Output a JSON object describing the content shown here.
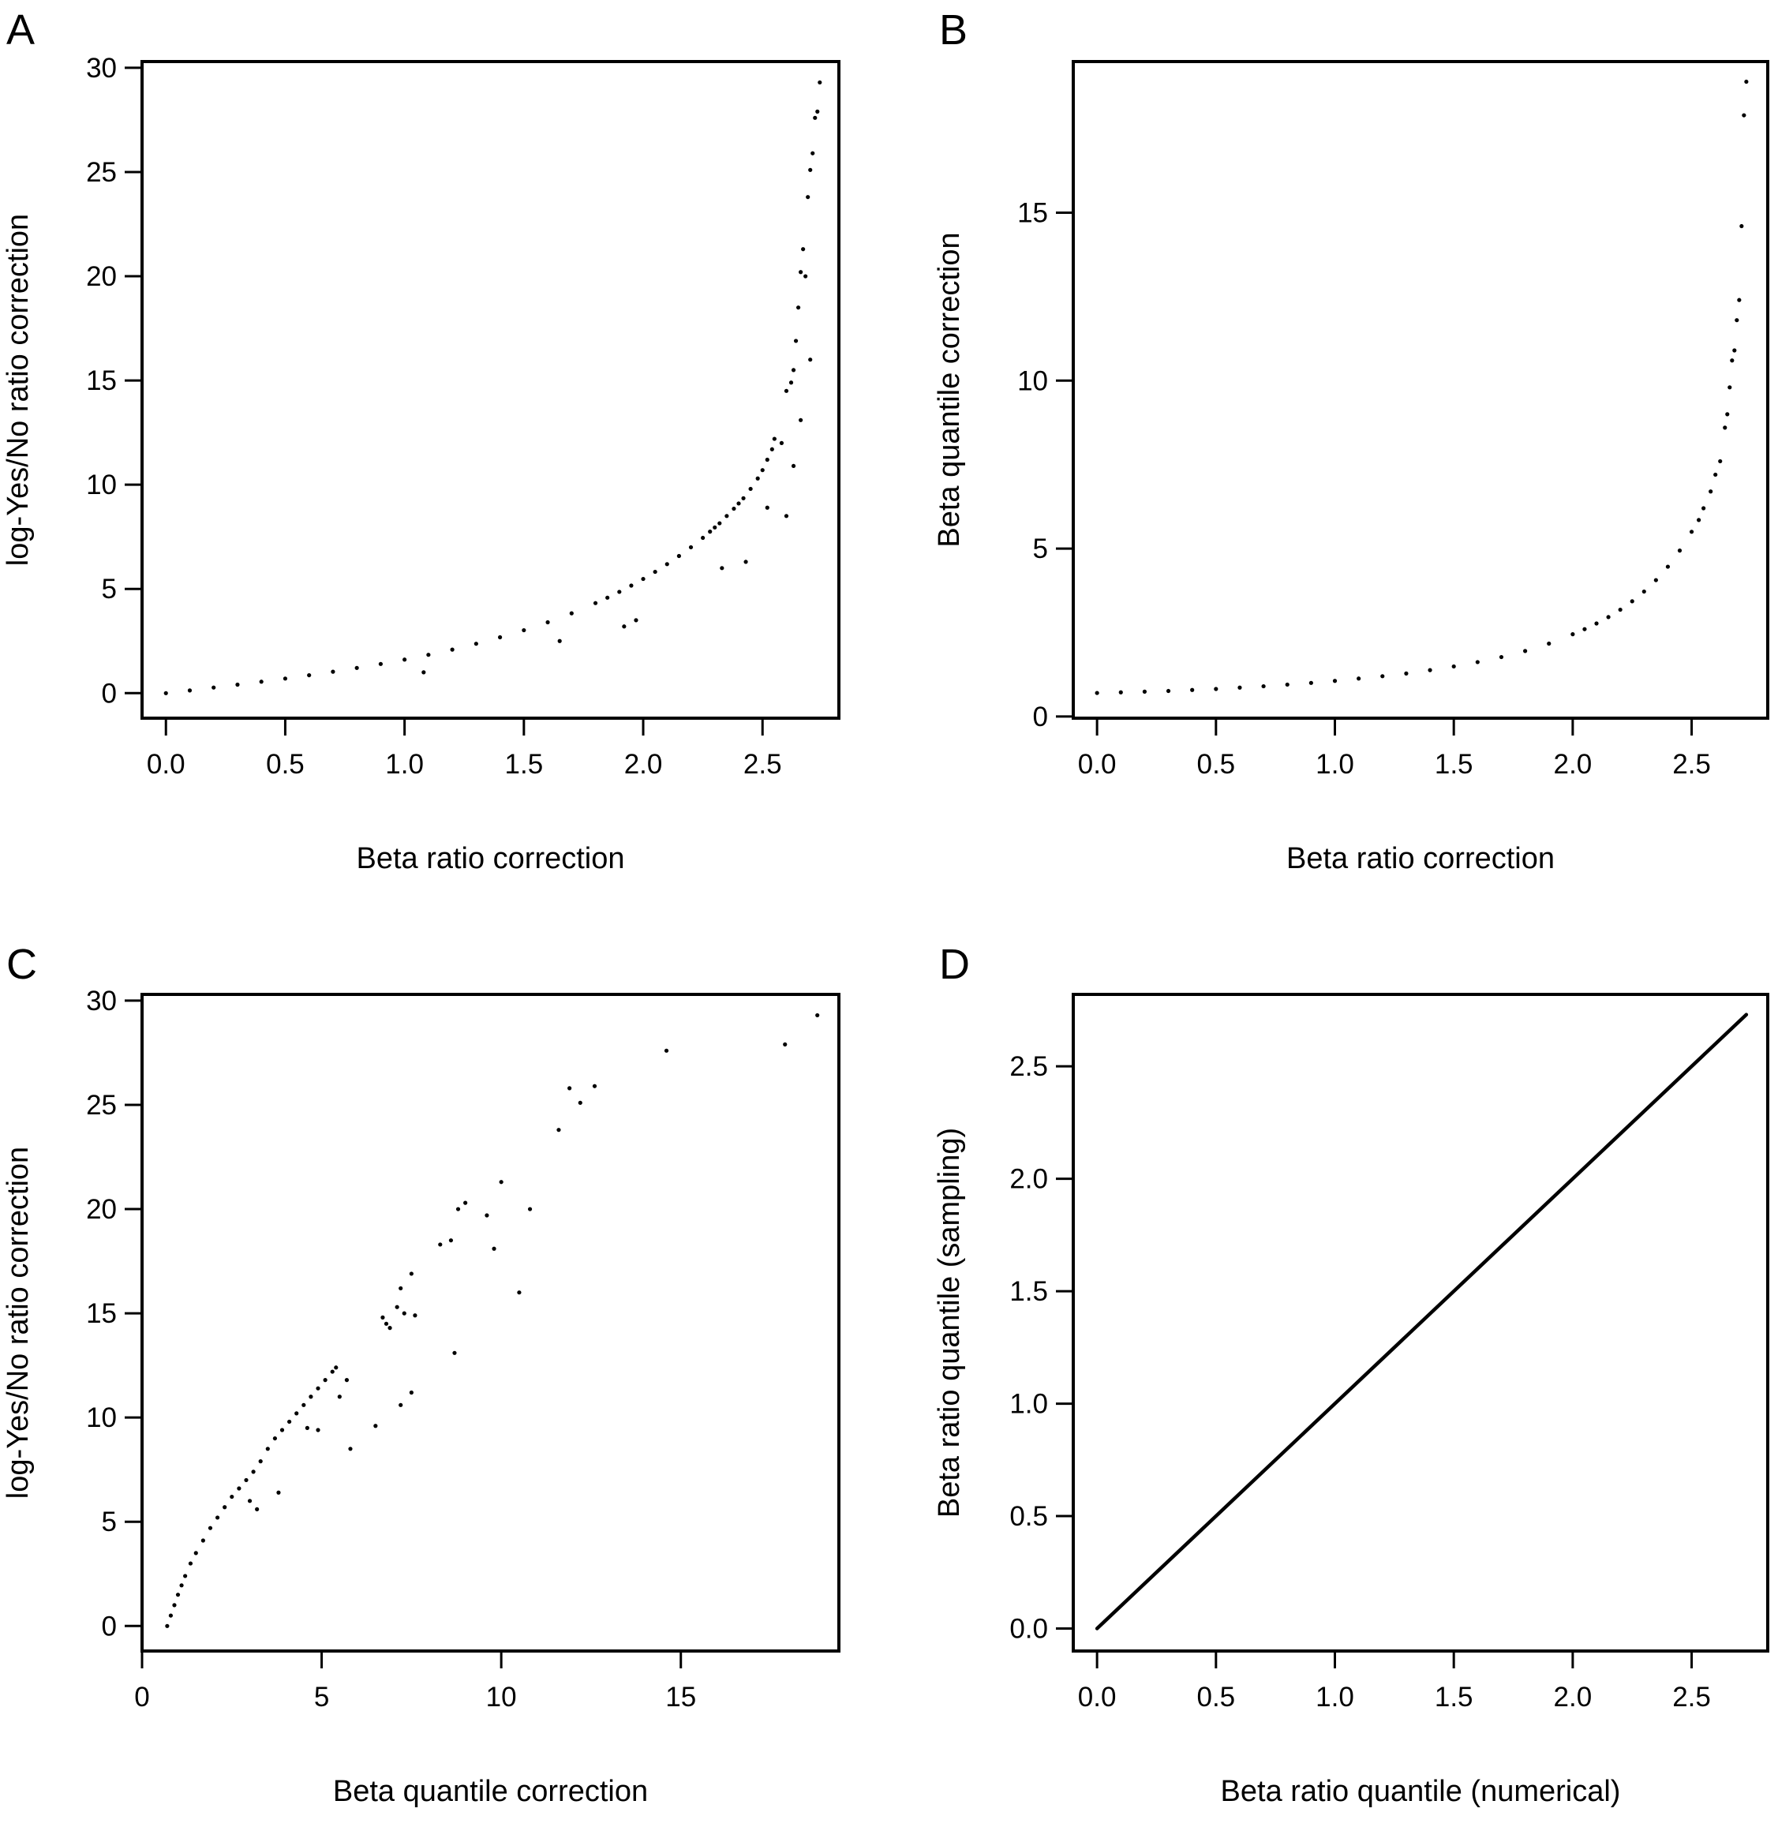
{
  "figure": {
    "panels": [
      "A",
      "B",
      "C",
      "D"
    ]
  },
  "chart_data": [
    {
      "panel": "A",
      "type": "scatter",
      "title": "",
      "xlabel": "Beta ratio correction",
      "ylabel": "log-Yes/No ratio correction",
      "xlim": [
        -0.1,
        2.82
      ],
      "ylim": [
        -1.2,
        30.3
      ],
      "xticks": [
        0.0,
        0.5,
        1.0,
        1.5,
        2.0,
        2.5
      ],
      "xtick_labels": [
        "0.0",
        "0.5",
        "1.0",
        "1.5",
        "2.0",
        "2.5"
      ],
      "yticks": [
        0,
        5,
        10,
        15,
        20,
        25,
        30
      ],
      "ytick_labels": [
        "0",
        "5",
        "10",
        "15",
        "20",
        "25",
        "30"
      ],
      "grid": false,
      "x": [
        0.0,
        0.1,
        0.2,
        0.3,
        0.4,
        0.5,
        0.6,
        0.7,
        0.8,
        0.9,
        1.0,
        1.1,
        1.2,
        1.3,
        1.4,
        1.5,
        1.6,
        1.7,
        1.8,
        1.85,
        1.9,
        1.95,
        2.0,
        2.05,
        2.1,
        2.15,
        2.2,
        2.25,
        2.28,
        2.3,
        2.32,
        2.35,
        2.38,
        2.4,
        2.42,
        2.45,
        2.48,
        2.5,
        2.52,
        2.54,
        2.55,
        2.58,
        2.6,
        2.62,
        2.63,
        2.64,
        2.65,
        2.66,
        2.67,
        2.68,
        2.69,
        2.7,
        2.71,
        2.72,
        2.73,
        2.74,
        1.08,
        1.65,
        1.92,
        1.97,
        2.33,
        2.43,
        2.52,
        2.6,
        2.63,
        2.66,
        2.7
      ],
      "y": [
        0.0,
        0.13,
        0.27,
        0.41,
        0.55,
        0.7,
        0.86,
        1.03,
        1.21,
        1.4,
        1.61,
        1.84,
        2.09,
        2.37,
        2.68,
        3.02,
        3.4,
        3.83,
        4.32,
        4.58,
        4.86,
        5.16,
        5.48,
        5.82,
        6.19,
        6.58,
        7.0,
        7.45,
        7.75,
        7.95,
        8.15,
        8.5,
        8.85,
        9.1,
        9.35,
        9.8,
        10.3,
        10.7,
        11.2,
        11.7,
        12.2,
        12.0,
        14.5,
        14.9,
        15.5,
        16.9,
        18.5,
        20.2,
        21.3,
        20.0,
        23.8,
        25.1,
        25.9,
        27.6,
        27.9,
        29.3,
        1.0,
        2.5,
        3.2,
        3.5,
        6.0,
        6.3,
        8.9,
        8.5,
        10.9,
        13.1,
        16.0
      ]
    },
    {
      "panel": "B",
      "type": "scatter",
      "title": "",
      "xlabel": "Beta ratio correction",
      "ylabel": "Beta quantile correction",
      "xlim": [
        -0.1,
        2.82
      ],
      "ylim": [
        -0.05,
        19.5
      ],
      "xticks": [
        0.0,
        0.5,
        1.0,
        1.5,
        2.0,
        2.5
      ],
      "xtick_labels": [
        "0.0",
        "0.5",
        "1.0",
        "1.5",
        "2.0",
        "2.5"
      ],
      "yticks": [
        0,
        5,
        10,
        15
      ],
      "ytick_labels": [
        "0",
        "5",
        "10",
        "15"
      ],
      "grid": false,
      "x": [
        0.0,
        0.1,
        0.2,
        0.3,
        0.4,
        0.5,
        0.6,
        0.7,
        0.8,
        0.9,
        1.0,
        1.1,
        1.2,
        1.3,
        1.4,
        1.5,
        1.6,
        1.7,
        1.8,
        1.9,
        2.0,
        2.05,
        2.1,
        2.15,
        2.2,
        2.25,
        2.3,
        2.35,
        2.4,
        2.45,
        2.5,
        2.53,
        2.55,
        2.58,
        2.6,
        2.62,
        2.64,
        2.65,
        2.66,
        2.67,
        2.68,
        2.69,
        2.7,
        2.71,
        2.72,
        2.73
      ],
      "y": [
        0.7,
        0.72,
        0.74,
        0.76,
        0.79,
        0.82,
        0.86,
        0.9,
        0.95,
        1.0,
        1.06,
        1.13,
        1.2,
        1.28,
        1.38,
        1.49,
        1.62,
        1.77,
        1.95,
        2.17,
        2.45,
        2.6,
        2.77,
        2.96,
        3.18,
        3.43,
        3.72,
        4.06,
        4.46,
        4.94,
        5.5,
        5.85,
        6.2,
        6.7,
        7.2,
        7.6,
        8.6,
        9.0,
        9.8,
        10.6,
        10.9,
        11.8,
        12.4,
        14.6,
        17.9,
        18.9
      ]
    },
    {
      "panel": "C",
      "type": "scatter",
      "title": "",
      "xlabel": "Beta quantile correction",
      "ylabel": "log-Yes/No ratio correction",
      "xlim": [
        0.0,
        19.4
      ],
      "ylim": [
        -1.2,
        30.3
      ],
      "xticks": [
        0,
        5,
        10,
        15
      ],
      "xtick_labels": [
        "0",
        "5",
        "10",
        "15"
      ],
      "yticks": [
        0,
        5,
        10,
        15,
        20,
        25,
        30
      ],
      "ytick_labels": [
        "0",
        "5",
        "10",
        "15",
        "20",
        "25",
        "30"
      ],
      "grid": false,
      "x": [
        0.7,
        0.8,
        0.9,
        1.0,
        1.1,
        1.2,
        1.35,
        1.5,
        1.7,
        1.9,
        2.1,
        2.3,
        2.5,
        2.7,
        2.9,
        3.1,
        3.3,
        3.5,
        3.7,
        3.9,
        4.1,
        4.3,
        4.5,
        4.7,
        4.9,
        5.1,
        5.3,
        5.4,
        3.0,
        3.2,
        3.8,
        4.6,
        4.9,
        5.5,
        5.8,
        5.7,
        6.5,
        6.7,
        6.8,
        6.9,
        7.1,
        7.2,
        7.3,
        7.5,
        7.6,
        7.2,
        7.5,
        8.3,
        8.6,
        8.7,
        8.8,
        9.0,
        9.6,
        9.8,
        10.0,
        10.5,
        10.8,
        11.6,
        11.9,
        12.2,
        12.6,
        14.6,
        17.9,
        18.8
      ],
      "y": [
        0.0,
        0.5,
        1.0,
        1.5,
        1.95,
        2.4,
        3.0,
        3.5,
        4.1,
        4.7,
        5.2,
        5.7,
        6.2,
        6.6,
        7.0,
        7.4,
        7.9,
        8.5,
        9.0,
        9.4,
        9.8,
        10.2,
        10.6,
        11.0,
        11.4,
        11.8,
        12.2,
        12.4,
        6.0,
        5.6,
        6.4,
        9.5,
        9.4,
        11.0,
        8.5,
        11.8,
        9.6,
        14.8,
        14.5,
        14.3,
        15.3,
        16.2,
        15.0,
        16.9,
        14.9,
        10.6,
        11.2,
        18.3,
        18.5,
        13.1,
        20.0,
        20.3,
        19.7,
        18.1,
        21.3,
        16.0,
        20.0,
        23.8,
        25.8,
        25.1,
        25.9,
        27.6,
        27.9,
        29.3
      ]
    },
    {
      "panel": "D",
      "type": "scatter",
      "title": "",
      "xlabel": "Beta ratio quantile (numerical)",
      "ylabel": "Beta ratio quantile (sampling)",
      "xlim": [
        -0.1,
        2.82
      ],
      "ylim": [
        -0.1,
        2.82
      ],
      "xticks": [
        0.0,
        0.5,
        1.0,
        1.5,
        2.0,
        2.5
      ],
      "xtick_labels": [
        "0.0",
        "0.5",
        "1.0",
        "1.5",
        "2.0",
        "2.5"
      ],
      "yticks": [
        0.0,
        0.5,
        1.0,
        1.5,
        2.0,
        2.5
      ],
      "ytick_labels": [
        "0.0",
        "0.5",
        "1.0",
        "1.5",
        "2.0",
        "2.5"
      ],
      "grid": false,
      "line_from": [
        0.0,
        0.0
      ],
      "line_to": [
        2.73,
        2.73
      ]
    }
  ]
}
